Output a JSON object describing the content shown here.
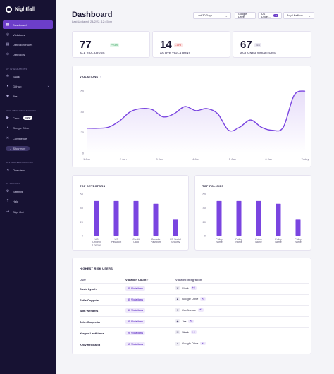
{
  "brand": {
    "name": "Nightfall"
  },
  "sidebar": {
    "main_items": [
      {
        "label": "Dashboard",
        "icon": "dashboard-icon",
        "glyph": "▦"
      },
      {
        "label": "Violations",
        "icon": "violations-icon",
        "glyph": "◎"
      },
      {
        "label": "Detection Rules",
        "icon": "rules-icon",
        "glyph": "▤"
      },
      {
        "label": "Detectors",
        "icon": "detectors-icon",
        "glyph": "⊙"
      }
    ],
    "integrations_label": "MY INTEGRATIONS",
    "integrations": [
      {
        "label": "Slack",
        "icon": "slack-icon",
        "glyph": "✲"
      },
      {
        "label": "GitHub",
        "icon": "github-icon",
        "glyph": "●"
      },
      {
        "label": "Jira",
        "icon": "jira-icon",
        "glyph": "◆"
      }
    ],
    "available_label": "AVAILABLE INTEGRATIONS",
    "available": [
      {
        "label": "Crisp",
        "icon": "crisp-icon",
        "glyph": "▶",
        "badge": "NEW"
      },
      {
        "label": "Google Drive",
        "icon": "google-drive-icon",
        "glyph": "▲"
      },
      {
        "label": "Confluence",
        "icon": "confluence-icon",
        "glyph": "✕"
      }
    ],
    "show_more": "Show more",
    "developer_label": "DEVELOPER PLATFORM",
    "developer": [
      {
        "label": "Overview",
        "icon": "overview-icon",
        "glyph": "◂"
      }
    ],
    "account_label": "MY ACCOUNT",
    "account": [
      {
        "label": "Settings",
        "icon": "settings-icon",
        "glyph": "⚙"
      },
      {
        "label": "Help",
        "icon": "help-icon",
        "glyph": "?"
      },
      {
        "label": "Sign Out",
        "icon": "sign-out-icon",
        "glyph": "⇥"
      }
    ]
  },
  "header": {
    "title": "Dashboard",
    "updated": "Last Updated: 24/2/22, 12:45pm",
    "filters": {
      "range": "Last 30 Days",
      "source": "Google Drive",
      "user": "US Driver...",
      "user_badge": "+3",
      "likelihood": "Any Likelihoo..."
    }
  },
  "kpis": [
    {
      "value": "77",
      "delta": "+23%",
      "tone": "green",
      "label": "ALL VIOLATIONS"
    },
    {
      "value": "14",
      "delta": "-18%",
      "tone": "red",
      "label": "ACTIVE VIOLATIONS"
    },
    {
      "value": "67",
      "delta": "N/A",
      "tone": "gray",
      "label": "ACTIONED VIOLATIONS"
    }
  ],
  "violations_chart": {
    "title": "VIOLATIONS",
    "info_icon": "info-icon"
  },
  "top_detectors": {
    "title": "TOP DETECTORS"
  },
  "top_policies": {
    "title": "TOP POLICIES"
  },
  "chart_data": [
    {
      "type": "area",
      "title": "VIOLATIONS",
      "categories": [
        "1 Jan",
        "2 Jan",
        "3 Jan",
        "4 Jan",
        "5 Jan",
        "6 Jan",
        "Today"
      ],
      "x": [
        0,
        0.3,
        0.6,
        0.9,
        1.2,
        1.5,
        1.8,
        2.1,
        2.4,
        2.7,
        3.0,
        3.3,
        3.6,
        3.9,
        4.2,
        4.5,
        4.8,
        5.1,
        5.4,
        5.7,
        6.0
      ],
      "values": [
        24,
        24,
        25,
        31,
        40,
        43,
        42,
        35,
        38,
        45,
        41,
        43,
        38,
        22,
        25,
        32,
        25,
        22,
        25,
        56,
        60
      ],
      "ylim": [
        0,
        60
      ],
      "yticks": [
        0,
        20,
        40,
        60
      ],
      "color": "#7a45e0",
      "grid": false
    },
    {
      "type": "bar",
      "title": "TOP DETECTORS",
      "categories": [
        "US Driving License",
        "US Passport",
        "Credit Card",
        "Canada Passport",
        "US Social Security"
      ],
      "values": [
        50,
        50,
        50,
        46,
        23
      ],
      "ylim": [
        0,
        60
      ],
      "yticks": [
        0,
        20,
        40,
        60
      ],
      "color": "#7a45e0"
    },
    {
      "type": "bar",
      "title": "TOP POLICIES",
      "categories": [
        "Policy Name",
        "Policy Name",
        "Policy Name",
        "Policy Name",
        "Policy Name"
      ],
      "values": [
        50,
        50,
        50,
        46,
        23
      ],
      "ylim": [
        0,
        60
      ],
      "yticks": [
        0,
        20,
        40,
        60
      ],
      "color": "#7a45e0"
    }
  ],
  "risk_table": {
    "title": "HIGHEST RISK USERS",
    "columns": {
      "user": "User",
      "count": "Violation Count",
      "integration": "Violated Integration"
    },
    "rows": [
      {
        "user": "David Lynch",
        "count": "45 Violations",
        "integration": "Slack",
        "icon": "slack-icon",
        "glyph": "✲",
        "more": "+2"
      },
      {
        "user": "Sofia Coppola",
        "count": "35 Violations",
        "integration": "Google Drive",
        "icon": "google-drive-icon",
        "glyph": "▲",
        "more": "+2"
      },
      {
        "user": "Wim Wenders",
        "count": "30 Violations",
        "integration": "Confluence",
        "icon": "confluence-icon",
        "glyph": "✕",
        "more": "+2"
      },
      {
        "user": "John Carpenter",
        "count": "25 Violations",
        "integration": "Jira",
        "icon": "jira-icon",
        "glyph": "◆",
        "more": "+2"
      },
      {
        "user": "Yorgos Lanthimos",
        "count": "20 Violations",
        "integration": "Slack",
        "icon": "slack-icon",
        "glyph": "✲",
        "more": "+2"
      },
      {
        "user": "Kelly Reichardt",
        "count": "15 Violations",
        "integration": "Google Drive",
        "icon": "google-drive-icon",
        "glyph": "▲",
        "more": "+2"
      }
    ]
  }
}
